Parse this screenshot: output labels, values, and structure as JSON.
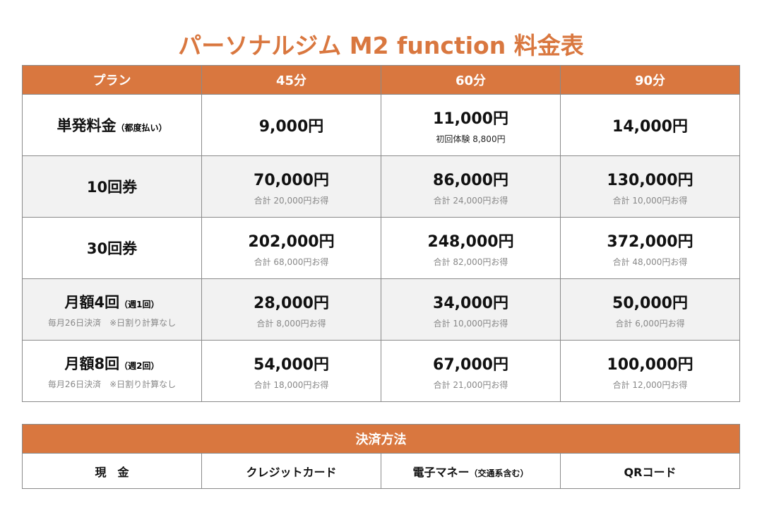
{
  "title": "パーソナルジム M2 function 料金表",
  "price_table": {
    "headers": [
      "プラン",
      "45分",
      "60分",
      "90分"
    ],
    "rows": [
      {
        "label": "単発料金",
        "label_small": "（都度払い）",
        "note": "",
        "cells": [
          {
            "price": "9,000円",
            "sub": ""
          },
          {
            "price": "11,000円",
            "sub": "初回体験 8,800円"
          },
          {
            "price": "14,000円",
            "sub": ""
          }
        ]
      },
      {
        "label": "10回券",
        "label_small": "",
        "note": "",
        "cells": [
          {
            "price": "70,000円",
            "sub": "合計 20,000円お得"
          },
          {
            "price": "86,000円",
            "sub": "合計 24,000円お得"
          },
          {
            "price": "130,000円",
            "sub": "合計 10,000円お得"
          }
        ]
      },
      {
        "label": "30回券",
        "label_small": "",
        "note": "",
        "cells": [
          {
            "price": "202,000円",
            "sub": "合計 68,000円お得"
          },
          {
            "price": "248,000円",
            "sub": "合計 82,000円お得"
          },
          {
            "price": "372,000円",
            "sub": "合計 48,000円お得"
          }
        ]
      },
      {
        "label": "月額4回",
        "label_small": "（週1回）",
        "note": "毎月26日決済　※日割り計算なし",
        "cells": [
          {
            "price": "28,000円",
            "sub": "合計 8,000円お得"
          },
          {
            "price": "34,000円",
            "sub": "合計 10,000円お得"
          },
          {
            "price": "50,000円",
            "sub": "合計 6,000円お得"
          }
        ]
      },
      {
        "label": "月額8回",
        "label_small": "（週2回）",
        "note": "毎月26日決済　※日割り計算なし",
        "cells": [
          {
            "price": "54,000円",
            "sub": "合計 18,000円お得"
          },
          {
            "price": "67,000円",
            "sub": "合計 21,000円お得"
          },
          {
            "price": "100,000円",
            "sub": "合計 12,000円お得"
          }
        ]
      }
    ]
  },
  "payment": {
    "header": "決済方法",
    "methods": [
      "現　金",
      "クレジットカード",
      "電子マネー",
      "QRコード"
    ],
    "method_small": "（交通系含む）"
  },
  "colors": {
    "accent": "#d9773f"
  }
}
